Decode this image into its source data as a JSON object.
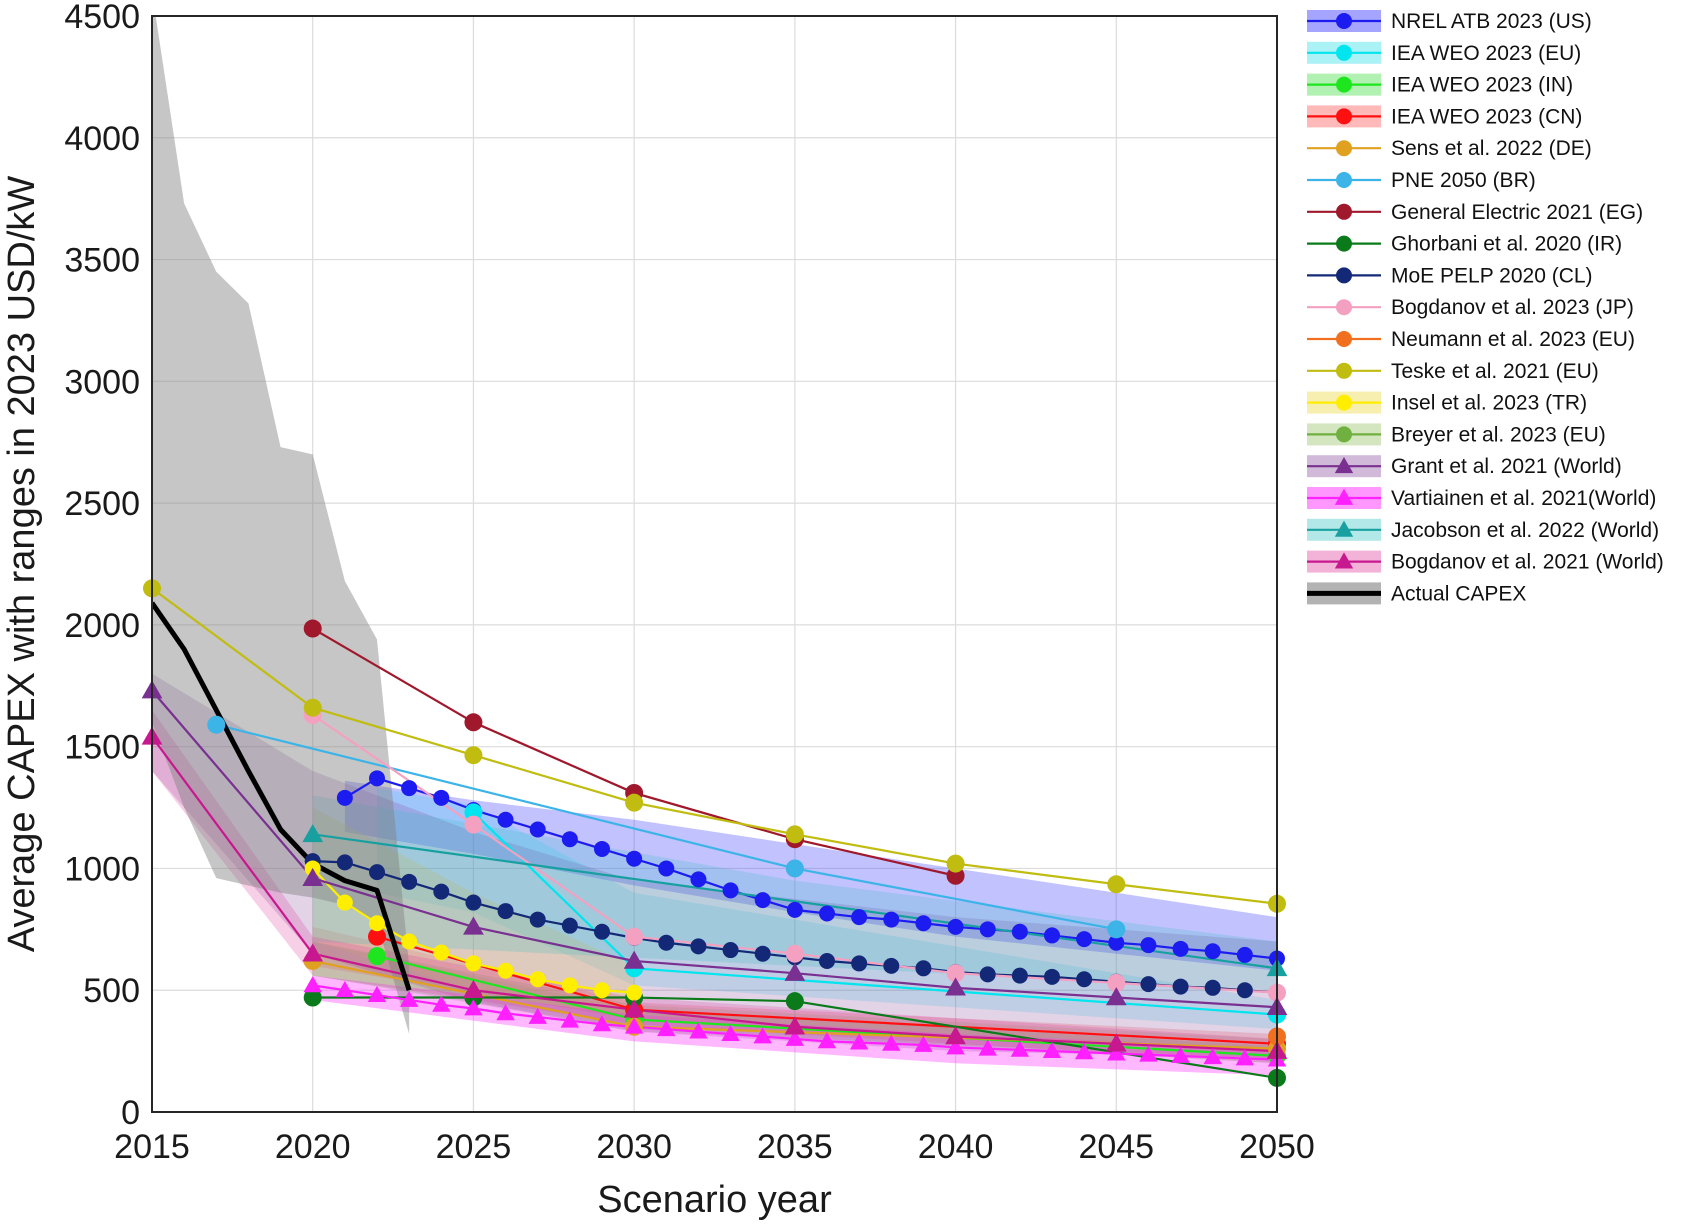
{
  "chart_data": {
    "type": "line",
    "title": "",
    "xlabel": "Scenario year",
    "ylabel": "Average CAPEX with ranges in 2023 USD/kW",
    "xlim": [
      2015,
      2050
    ],
    "ylim": [
      0,
      4500
    ],
    "xticks": [
      2015,
      2020,
      2025,
      2030,
      2035,
      2040,
      2045,
      2050
    ],
    "yticks": [
      0,
      500,
      1000,
      1500,
      2000,
      2500,
      3000,
      3500,
      4000,
      4500
    ],
    "grid": true,
    "legend_position": "outside-right-top",
    "series": [
      {
        "name": "NREL ATB 2023 (US)",
        "color": "#1c1cf0",
        "marker": "circle",
        "every_year": true,
        "x": [
          2021,
          2022,
          2023,
          2024,
          2025,
          2026,
          2027,
          2028,
          2029,
          2030,
          2031,
          2032,
          2033,
          2034,
          2035,
          2036,
          2037,
          2038,
          2039,
          2040,
          2041,
          2042,
          2043,
          2044,
          2045,
          2046,
          2047,
          2048,
          2049,
          2050
        ],
        "y": [
          1290,
          1370,
          1330,
          1290,
          1240,
          1200,
          1160,
          1120,
          1080,
          1040,
          1000,
          955,
          910,
          870,
          830,
          815,
          800,
          790,
          775,
          760,
          750,
          740,
          725,
          710,
          695,
          685,
          670,
          660,
          645,
          630
        ],
        "band": {
          "x": [
            2021,
            2025,
            2030,
            2035,
            2040,
            2045,
            2050
          ],
          "low": [
            1150,
            1060,
            930,
            820,
            720,
            650,
            580
          ],
          "high": [
            1360,
            1280,
            1200,
            1100,
            1000,
            900,
            800
          ],
          "color": "#4040ff",
          "opacity": 0.32
        }
      },
      {
        "name": "IEA WEO 2023 (EU)",
        "color": "#00e5ee",
        "marker": "circle",
        "x": [
          2025,
          2030,
          2050
        ],
        "y": [
          1230,
          590,
          400
        ],
        "band": {
          "x": [
            2022,
            2025,
            2030,
            2050
          ],
          "low": [
            900,
            820,
            520,
            340
          ],
          "high": [
            1330,
            1260,
            900,
            460
          ],
          "color": "#00d8e8",
          "opacity": 0.18
        }
      },
      {
        "name": "IEA WEO 2023 (IN)",
        "color": "#1ee61e",
        "marker": "circle",
        "x": [
          2022,
          2030,
          2050
        ],
        "y": [
          640,
          380,
          230
        ],
        "band": {
          "x": [
            2020,
            2030,
            2050
          ],
          "low": [
            560,
            340,
            200
          ],
          "high": [
            700,
            420,
            270
          ],
          "color": "#3cdc3c",
          "opacity": 0.25
        }
      },
      {
        "name": "IEA WEO 2023 (CN)",
        "color": "#ff1010",
        "marker": "circle",
        "x": [
          2022,
          2030,
          2050
        ],
        "y": [
          720,
          420,
          280
        ],
        "band": {
          "x": [
            2020,
            2030,
            2050
          ],
          "low": [
            600,
            380,
            250
          ],
          "high": [
            760,
            450,
            320
          ],
          "color": "#ff4040",
          "opacity": 0.22
        }
      },
      {
        "name": "Sens et al. 2022 (DE)",
        "color": "#e0a020",
        "marker": "circle",
        "x": [
          2020,
          2030,
          2050
        ],
        "y": [
          620,
          350,
          260
        ]
      },
      {
        "name": "PNE 2050 (BR)",
        "color": "#3cb4e8",
        "marker": "circle",
        "x": [
          2017,
          2035,
          2045
        ],
        "y": [
          1590,
          1000,
          750
        ]
      },
      {
        "name": "General Electric 2021 (EG)",
        "color": "#a0182c",
        "marker": "circle",
        "x": [
          2020,
          2025,
          2030,
          2035,
          2040
        ],
        "y": [
          1985,
          1600,
          1310,
          1120,
          970
        ]
      },
      {
        "name": "Ghorbani et al. 2020 (IR)",
        "color": "#0a7a1a",
        "marker": "circle",
        "x": [
          2020,
          2025,
          2030,
          2035,
          2050
        ],
        "y": [
          470,
          470,
          470,
          455,
          140
        ]
      },
      {
        "name": "MoE PELP 2020 (CL)",
        "color": "#142878",
        "marker": "circle",
        "every_year": true,
        "x": [
          2020,
          2021,
          2022,
          2023,
          2024,
          2025,
          2026,
          2027,
          2028,
          2029,
          2030,
          2031,
          2032,
          2033,
          2034,
          2035,
          2036,
          2037,
          2038,
          2039,
          2040,
          2041,
          2042,
          2043,
          2044,
          2045,
          2046,
          2047,
          2048,
          2049,
          2050
        ],
        "y": [
          1030,
          1025,
          985,
          945,
          905,
          860,
          825,
          790,
          765,
          740,
          715,
          695,
          680,
          665,
          650,
          635,
          620,
          610,
          600,
          590,
          575,
          565,
          560,
          555,
          545,
          535,
          525,
          515,
          510,
          500,
          490
        ]
      },
      {
        "name": "Bogdanov et al. 2023 (JP)",
        "color": "#f4a0c0",
        "marker": "circle",
        "x": [
          2020,
          2025,
          2030,
          2035,
          2040,
          2045,
          2050
        ],
        "y": [
          1630,
          1180,
          720,
          650,
          570,
          530,
          490
        ]
      },
      {
        "name": "Neumann et al. 2023 (EU)",
        "color": "#f07020",
        "marker": "circle",
        "x": [
          2050
        ],
        "y": [
          310
        ]
      },
      {
        "name": "Teske et al. 2021 (EU)",
        "color": "#c0bc10",
        "marker": "circle",
        "x": [
          2015,
          2020,
          2025,
          2030,
          2035,
          2040,
          2045,
          2050
        ],
        "y": [
          2150,
          1660,
          1465,
          1270,
          1140,
          1020,
          935,
          855
        ]
      },
      {
        "name": "Insel et al. 2023 (TR)",
        "color": "#ffee00",
        "marker": "circle",
        "every_year": true,
        "x": [
          2020,
          2021,
          2022,
          2023,
          2024,
          2025,
          2026,
          2027,
          2028,
          2029,
          2030
        ],
        "y": [
          1000,
          860,
          775,
          700,
          655,
          610,
          580,
          545,
          520,
          500,
          490
        ],
        "band": {
          "x": [
            2020,
            2025,
            2030
          ],
          "low": [
            700,
            500,
            380
          ],
          "high": [
            1250,
            900,
            600
          ],
          "color": "#f0e060",
          "opacity": 0.35
        }
      },
      {
        "name": "Breyer et al. 2023 (EU)",
        "color": "#70b040",
        "marker": "circle",
        "x": [],
        "y": [],
        "band": {
          "x": [
            2020,
            2030,
            2050
          ],
          "low": [
            560,
            330,
            220
          ],
          "high": [
            700,
            440,
            300
          ],
          "color": "#90c060",
          "opacity": 0.25
        }
      },
      {
        "name": "Grant et al. 2021 (World)",
        "color": "#7a3090",
        "marker": "triangle",
        "x": [
          2015,
          2020,
          2025,
          2030,
          2035,
          2040,
          2045,
          2050
        ],
        "y": [
          1730,
          960,
          760,
          620,
          570,
          510,
          470,
          430
        ],
        "band": {
          "x": [
            2015,
            2020,
            2025,
            2030,
            2040,
            2050
          ],
          "low": [
            1400,
            650,
            450,
            330,
            250,
            220
          ],
          "high": [
            1800,
            1400,
            1150,
            950,
            800,
            700
          ],
          "color": "#8a50a0",
          "opacity": 0.25
        }
      },
      {
        "name": "Vartiainen et al. 2021(World)",
        "color": "#ff20ff",
        "marker": "triangle",
        "every_year": true,
        "x": [
          2020,
          2021,
          2022,
          2023,
          2024,
          2025,
          2026,
          2027,
          2028,
          2029,
          2030,
          2031,
          2032,
          2033,
          2034,
          2035,
          2036,
          2037,
          2038,
          2039,
          2040,
          2041,
          2042,
          2043,
          2044,
          2045,
          2046,
          2047,
          2048,
          2049,
          2050
        ],
        "y": [
          520,
          500,
          480,
          460,
          440,
          425,
          405,
          390,
          375,
          360,
          350,
          340,
          330,
          320,
          310,
          300,
          290,
          285,
          280,
          275,
          265,
          260,
          255,
          250,
          245,
          240,
          235,
          230,
          225,
          220,
          215
        ],
        "band": {
          "x": [
            2020,
            2030,
            2040,
            2050
          ],
          "low": [
            460,
            290,
            200,
            150
          ],
          "high": [
            560,
            400,
            320,
            260
          ],
          "color": "#ff30ff",
          "opacity": 0.35
        }
      },
      {
        "name": "Jacobson et al. 2022 (World)",
        "color": "#18a0a0",
        "marker": "triangle",
        "x": [
          2020,
          2050
        ],
        "y": [
          1140,
          590
        ],
        "band": {
          "x": [
            2020,
            2035,
            2050
          ],
          "low": [
            700,
            600,
            500
          ],
          "high": [
            1300,
            950,
            700
          ],
          "color": "#30c0c0",
          "opacity": 0.22
        }
      },
      {
        "name": "Bogdanov et al. 2021 (World)",
        "color": "#c81890",
        "marker": "triangle",
        "x": [
          2015,
          2020,
          2025,
          2030,
          2035,
          2040,
          2045,
          2050
        ],
        "y": [
          1540,
          650,
          500,
          420,
          350,
          310,
          280,
          250
        ],
        "band": {
          "x": [
            2015,
            2020,
            2030,
            2050
          ],
          "low": [
            1400,
            560,
            360,
            200
          ],
          "high": [
            1650,
            720,
            470,
            300
          ],
          "color": "#e040a0",
          "opacity": 0.25
        }
      },
      {
        "name": "Actual CAPEX",
        "color": "#000000",
        "marker": "none",
        "thick": true,
        "x": [
          2015,
          2016,
          2017,
          2018,
          2019,
          2020,
          2021,
          2022,
          2023
        ],
        "y": [
          2090,
          1900,
          1650,
          1400,
          1160,
          1020,
          950,
          910,
          500
        ],
        "band": {
          "x": [
            2015,
            2016,
            2017,
            2018,
            2019,
            2020,
            2021,
            2022,
            2023
          ],
          "low": [
            1600,
            1250,
            960,
            930,
            900,
            880,
            850,
            780,
            320
          ],
          "high": [
            4600,
            3730,
            3450,
            3320,
            2730,
            2700,
            2180,
            1940,
            600
          ],
          "color": "#808080",
          "opacity": 0.45
        }
      }
    ]
  }
}
